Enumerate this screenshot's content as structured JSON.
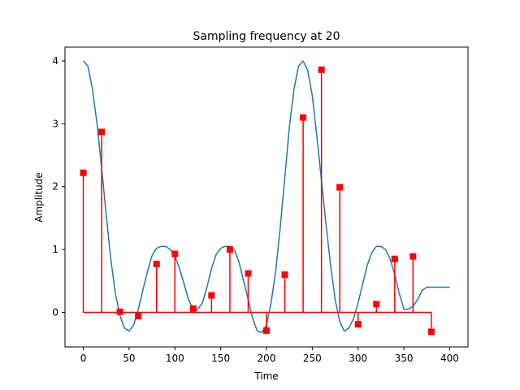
{
  "chart_data": {
    "type": "line",
    "title": "Sampling frequency at 20",
    "xlabel": "Time",
    "ylabel": "Amplitude",
    "xlim": [
      -20,
      420
    ],
    "ylim": [
      -0.55,
      4.22
    ],
    "xticks": [
      0,
      50,
      100,
      150,
      200,
      250,
      300,
      350,
      400
    ],
    "yticks": [
      0,
      1,
      2,
      3,
      4
    ],
    "grid": false,
    "series": [
      {
        "kind": "line",
        "color": "#1f77b4",
        "x": [
          0,
          5,
          10,
          15,
          20,
          25,
          30,
          35,
          40,
          45,
          50,
          55,
          60,
          65,
          70,
          75,
          80,
          85,
          90,
          95,
          100,
          105,
          110,
          115,
          120,
          125,
          130,
          135,
          140,
          145,
          150,
          155,
          160,
          165,
          170,
          175,
          180,
          185,
          190,
          195,
          200,
          205,
          210,
          215,
          220,
          225,
          230,
          235,
          240,
          245,
          250,
          255,
          260,
          265,
          270,
          275,
          280,
          285,
          290,
          295,
          300,
          305,
          310,
          315,
          320,
          325,
          330,
          335,
          340,
          345,
          350,
          355,
          360,
          365,
          370,
          375,
          380,
          385,
          390,
          395,
          400
        ],
        "y": [
          4.0,
          3.92,
          3.55,
          3.0,
          2.3,
          1.55,
          0.85,
          0.3,
          -0.05,
          -0.25,
          -0.3,
          -0.2,
          0.05,
          0.35,
          0.65,
          0.9,
          1.02,
          1.05,
          1.05,
          1.0,
          0.9,
          0.7,
          0.45,
          0.2,
          0.05,
          0.05,
          0.15,
          0.4,
          0.7,
          0.92,
          1.02,
          1.05,
          1.05,
          1.0,
          0.8,
          0.5,
          0.2,
          -0.1,
          -0.3,
          -0.32,
          -0.2,
          0.15,
          0.65,
          1.35,
          2.15,
          2.95,
          3.55,
          3.92,
          4.0,
          3.85,
          3.45,
          2.8,
          2.1,
          1.4,
          0.75,
          0.2,
          -0.15,
          -0.3,
          -0.25,
          -0.1,
          0.15,
          0.45,
          0.75,
          0.95,
          1.05,
          1.05,
          1.0,
          0.85,
          0.6,
          0.3,
          0.05,
          0.05,
          0.1,
          0.2,
          0.35,
          0.4,
          0.4,
          0.4,
          0.4,
          0.4,
          0.4
        ]
      },
      {
        "kind": "stem",
        "color": "#ff0000",
        "x": [
          0,
          20,
          40,
          60,
          80,
          100,
          120,
          140,
          160,
          180,
          200,
          220,
          240,
          260,
          280,
          300,
          320,
          340,
          360,
          380
        ],
        "y": [
          2.22,
          2.87,
          0.01,
          -0.06,
          0.77,
          0.93,
          0.06,
          0.27,
          1.0,
          0.62,
          -0.29,
          0.6,
          3.1,
          3.86,
          1.99,
          -0.19,
          0.13,
          0.85,
          0.89,
          -0.31
        ]
      }
    ]
  }
}
